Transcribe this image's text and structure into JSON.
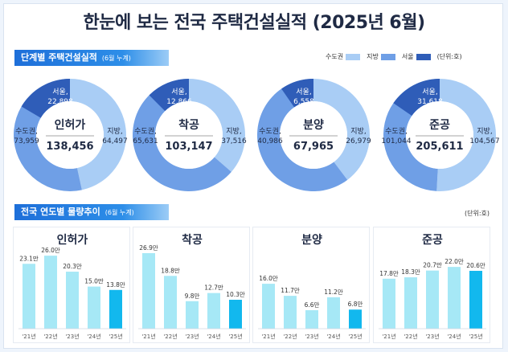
{
  "title": "한눈에 보는 전국 주택건설실적 (2025년 6월)",
  "section1": {
    "label": "단계별 주택건설실적",
    "sub": "(6월 누계)"
  },
  "legend": {
    "items": [
      {
        "label": "수도권",
        "color": "#a9cdf5"
      },
      {
        "label": "지방",
        "color": "#6f9fe6"
      },
      {
        "label": "서울",
        "color": "#2f5db8"
      }
    ],
    "unit": "(단위:호)"
  },
  "donuts": [
    {
      "name": "인허가",
      "total": "138,456",
      "seoul_label": "서울,",
      "seoul": "22,898",
      "metro_label": "수도권,",
      "metro": "73,959",
      "local_label": "지방,",
      "local": "64,497",
      "seoul_v": 22898,
      "metro_v": 73959,
      "local_v": 64497
    },
    {
      "name": "착공",
      "total": "103,147",
      "seoul_label": "서울,",
      "seoul": "12,866",
      "metro_label": "수도권,",
      "metro": "65,631",
      "local_label": "지방,",
      "local": "37,516",
      "seoul_v": 12866,
      "metro_v": 65631,
      "local_v": 37516
    },
    {
      "name": "분양",
      "total": "67,965",
      "seoul_label": "서울,",
      "seoul": "6,558",
      "metro_label": "수도권,",
      "metro": "40,986",
      "local_label": "지방,",
      "local": "26,979",
      "seoul_v": 6558,
      "metro_v": 40986,
      "local_v": 26979
    },
    {
      "name": "준공",
      "total": "205,611",
      "seoul_label": "서울,",
      "seoul": "31,618",
      "metro_label": "수도권,",
      "metro": "101,044",
      "local_label": "지방,",
      "local": "104,567",
      "seoul_v": 31618,
      "metro_v": 101044,
      "local_v": 104567
    }
  ],
  "section2": {
    "label": "전국 연도별 물량추이",
    "sub": "(6월 누계)",
    "unit": "(단위:호)"
  },
  "chart_data": [
    {
      "type": "bar",
      "title": "인허가",
      "categories": [
        "'21년",
        "'22년",
        "'23년",
        "'24년",
        "'25년"
      ],
      "values": [
        23.1,
        26.0,
        20.3,
        15.0,
        13.8
      ],
      "labels": [
        "23.1만",
        "26.0만",
        "20.3만",
        "15.0만",
        "13.8만"
      ]
    },
    {
      "type": "bar",
      "title": "착공",
      "categories": [
        "'21년",
        "'22년",
        "'23년",
        "'24년",
        "'25년"
      ],
      "values": [
        26.9,
        18.8,
        9.8,
        12.7,
        10.3
      ],
      "labels": [
        "26.9만",
        "18.8만",
        "9.8만",
        "12.7만",
        "10.3만"
      ]
    },
    {
      "type": "bar",
      "title": "분양",
      "categories": [
        "'21년",
        "'22년",
        "'23년",
        "'24년",
        "'25년"
      ],
      "values": [
        16.0,
        11.7,
        6.6,
        11.2,
        6.8
      ],
      "labels": [
        "16.0만",
        "11.7만",
        "6.6만",
        "11.2만",
        "6.8만"
      ]
    },
    {
      "type": "bar",
      "title": "준공",
      "categories": [
        "'21년",
        "'22년",
        "'23년",
        "'24년",
        "'25년"
      ],
      "values": [
        17.8,
        18.3,
        20.7,
        22.0,
        20.6
      ],
      "labels": [
        "17.8만",
        "18.3만",
        "20.7만",
        "22.0만",
        "20.6만"
      ]
    }
  ],
  "colors": {
    "bar_past": "#a6e8f6",
    "bar_current": "#12b8ee",
    "ring_metro": "#a9cdf5",
    "ring_local": "#6f9fe6",
    "ring_seoul": "#2f5db8"
  }
}
